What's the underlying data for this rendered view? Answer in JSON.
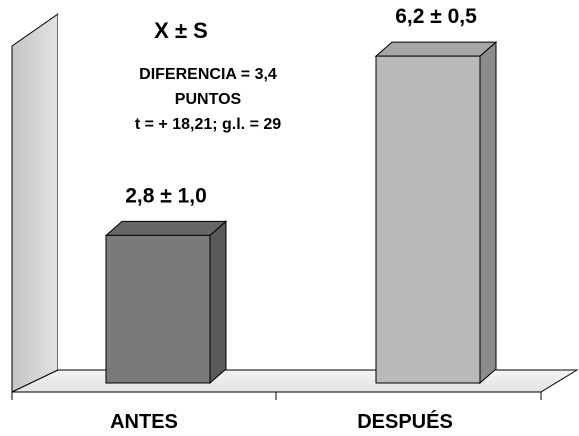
{
  "chart_data": {
    "type": "bar",
    "title": "X ± S",
    "annotation_lines": [
      "DIFERENCIA = 3,4",
      "PUNTOS",
      "t =  + 18,21;  g.l. = 29"
    ],
    "categories": [
      "ANTES",
      "DESPUÉS"
    ],
    "values": [
      2.8,
      6.2
    ],
    "errors": [
      1.0,
      0.5
    ],
    "data_labels": [
      "2,8 ± 1,0",
      "6,2 ± 0,5"
    ],
    "ylim": [
      0,
      7
    ],
    "grid": false,
    "style": "3d",
    "colors": {
      "bar_front": [
        "#7a7a7a",
        "#b9b9b9"
      ],
      "bar_side": [
        "#5a5a5a",
        "#8c8c8c"
      ],
      "bar_top": [
        "#666666",
        "#a6a6a6"
      ],
      "back_wall": "#ffffff",
      "side_wall": "#d2d2d2",
      "floor": "#ededed"
    }
  }
}
